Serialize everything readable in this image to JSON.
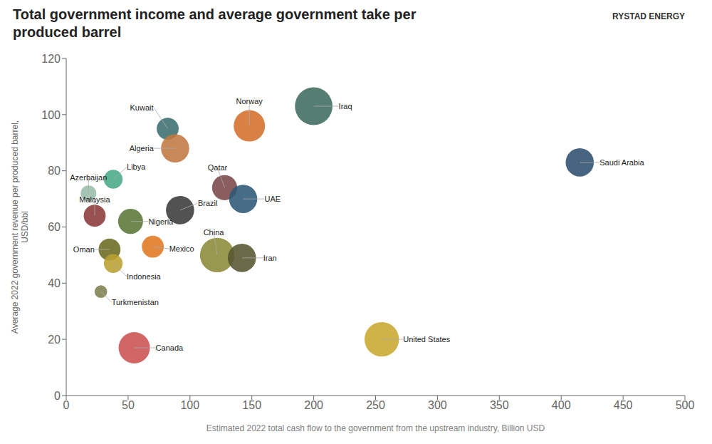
{
  "chart_data": {
    "type": "scatter",
    "title": "Total government income and average government take per\nproduced barrel",
    "xlabel": "Estimated 2022 total cash flow to the government from the upstream industry, Billion USD",
    "ylabel": "Average 2022 government revenue per produced barrel,\nUSD/bbl",
    "labels": [
      "Kuwait",
      "Algeria",
      "Iraq",
      "Norway",
      "Libya",
      "Azerbaijan",
      "Qatar",
      "UAE",
      "Malaysia",
      "Nigeria",
      "Brazil",
      "China",
      "Iran",
      "Mexico",
      "Oman",
      "Indonesia",
      "Turkmenistan",
      "Canada",
      "Saudi Arabia",
      "United States"
    ],
    "x": [
      82,
      88,
      200,
      148,
      38,
      18,
      128,
      143,
      23,
      52,
      92,
      122,
      142,
      70,
      35,
      38,
      28,
      55,
      415,
      255
    ],
    "values": [
      95,
      88,
      103,
      96,
      77,
      72,
      74,
      70,
      64,
      62,
      66,
      50,
      49,
      53,
      52,
      47,
      37,
      17,
      83,
      20
    ],
    "sizes": [
      7,
      9,
      12,
      10,
      6,
      5,
      8,
      9,
      7,
      8,
      9,
      11,
      9,
      7,
      7,
      6,
      4,
      10,
      9,
      11
    ],
    "colors": [
      "#3a6e6e",
      "#c07840",
      "#3d6b5e",
      "#d4702a",
      "#4aaa88",
      "#9abcaa",
      "#7a4848",
      "#2e5878",
      "#8b3838",
      "#5a7838",
      "#3a3a3a",
      "#8a8a38",
      "#555530",
      "#e07820",
      "#6b6b20",
      "#b8a030",
      "#808050",
      "#cc5050",
      "#2e5070",
      "#c8a830"
    ],
    "xlim": [
      0,
      500
    ],
    "ylim": [
      0,
      120
    ],
    "xticks": [
      0,
      50,
      100,
      150,
      200,
      250,
      300,
      350,
      400,
      450,
      500
    ],
    "yticks": [
      0,
      20,
      40,
      60,
      80,
      100,
      120
    ],
    "grid": false,
    "annotations": [
      "RYSTAD ENERGY"
    ]
  }
}
